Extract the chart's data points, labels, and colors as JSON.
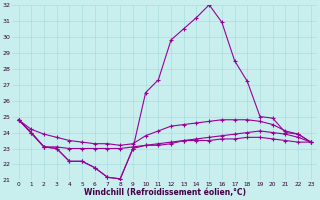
{
  "xlabel": "Windchill (Refroidissement éolien,°C)",
  "x": [
    0,
    1,
    2,
    3,
    4,
    5,
    6,
    7,
    8,
    9,
    10,
    11,
    12,
    13,
    14,
    15,
    16,
    17,
    18,
    19,
    20,
    21,
    22,
    23
  ],
  "line_peak": [
    24.8,
    24.0,
    23.1,
    23.0,
    22.2,
    22.2,
    21.8,
    21.2,
    21.1,
    23.0,
    26.5,
    27.3,
    29.8,
    30.5,
    31.2,
    32.0,
    30.9,
    28.5,
    27.2,
    25.0,
    24.9,
    24.0,
    23.9,
    23.4
  ],
  "line_upper": [
    24.8,
    24.2,
    23.9,
    23.7,
    23.5,
    23.4,
    23.3,
    23.3,
    23.2,
    23.3,
    23.8,
    24.1,
    24.4,
    24.5,
    24.6,
    24.7,
    24.8,
    24.8,
    24.8,
    24.7,
    24.5,
    24.1,
    23.9,
    23.4
  ],
  "line_mid": [
    24.8,
    null,
    23.1,
    23.1,
    23.0,
    23.0,
    23.0,
    23.0,
    23.0,
    23.1,
    23.2,
    23.3,
    23.4,
    23.5,
    23.6,
    23.7,
    23.8,
    23.9,
    24.0,
    24.1,
    24.0,
    23.9,
    23.7,
    23.4
  ],
  "line_dip": [
    24.8,
    24.0,
    23.1,
    23.0,
    22.2,
    22.2,
    21.8,
    21.2,
    21.1,
    23.0,
    23.2,
    23.2,
    23.3,
    23.5,
    23.5,
    23.5,
    23.6,
    23.6,
    23.7,
    23.7,
    23.6,
    23.5,
    23.4,
    23.4
  ],
  "bg_color": "#c8eeee",
  "grid_color": "#aadddd",
  "line_color": "#990099",
  "ylim": [
    21,
    32
  ],
  "yticks": [
    21,
    22,
    23,
    24,
    25,
    26,
    27,
    28,
    29,
    30,
    31,
    32
  ]
}
